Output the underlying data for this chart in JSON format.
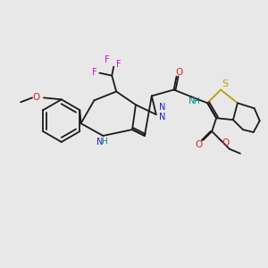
{
  "bg_color": "#e8e8e8",
  "bond_color": "#1a1a1a",
  "colors": {
    "N": "#2020cc",
    "O": "#dd2020",
    "S": "#b8a000",
    "F": "#dd00dd",
    "NH_color": "#008888",
    "C": "#1a1a1a"
  },
  "lw": 1.3,
  "fs": 7.0
}
